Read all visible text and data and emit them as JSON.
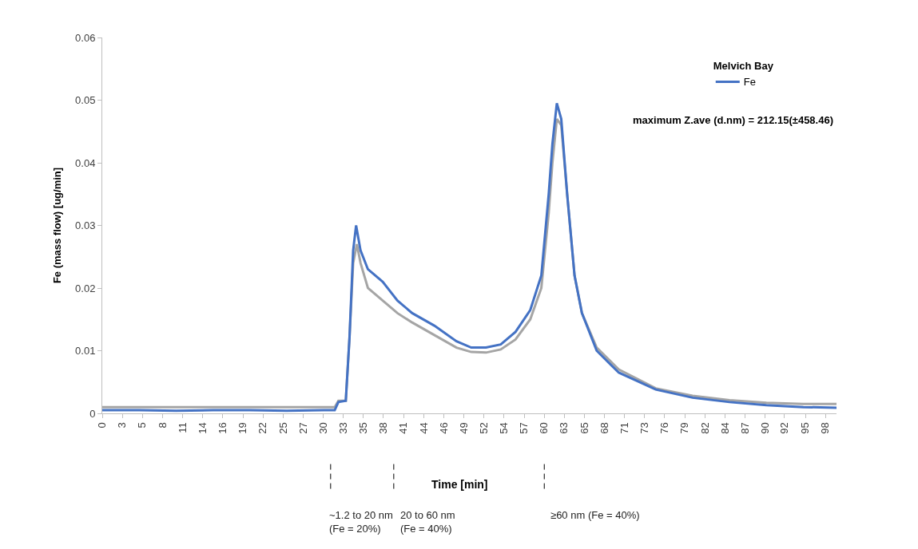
{
  "chart_data": {
    "type": "line",
    "xlabel": "Time [min]",
    "ylabel": "Fe (mass flow) [ug/min]",
    "legend_title": "Melvich Bay",
    "xlim": [
      0,
      99.5
    ],
    "xticks": [
      {
        "value": 0,
        "label": "0"
      },
      {
        "value": 2.72,
        "label": "3"
      },
      {
        "value": 5.44,
        "label": "5"
      },
      {
        "value": 8.17,
        "label": "8"
      },
      {
        "value": 10.89,
        "label": "11"
      },
      {
        "value": 13.61,
        "label": "14"
      },
      {
        "value": 16.33,
        "label": "16"
      },
      {
        "value": 19.06,
        "label": "19"
      },
      {
        "value": 21.78,
        "label": "22"
      },
      {
        "value": 24.5,
        "label": "25"
      },
      {
        "value": 27.22,
        "label": "27"
      },
      {
        "value": 29.94,
        "label": "30"
      },
      {
        "value": 32.67,
        "label": "33"
      },
      {
        "value": 35.39,
        "label": "35"
      },
      {
        "value": 38.11,
        "label": "38"
      },
      {
        "value": 40.83,
        "label": "41"
      },
      {
        "value": 43.56,
        "label": "44"
      },
      {
        "value": 46.28,
        "label": "46"
      },
      {
        "value": 49,
        "label": "49"
      },
      {
        "value": 51.72,
        "label": "52"
      },
      {
        "value": 54.44,
        "label": "54"
      },
      {
        "value": 57.17,
        "label": "57"
      },
      {
        "value": 59.89,
        "label": "60"
      },
      {
        "value": 62.61,
        "label": "63"
      },
      {
        "value": 65.33,
        "label": "65"
      },
      {
        "value": 68.06,
        "label": "68"
      },
      {
        "value": 70.78,
        "label": "71"
      },
      {
        "value": 73.5,
        "label": "73"
      },
      {
        "value": 76.22,
        "label": "76"
      },
      {
        "value": 78.94,
        "label": "79"
      },
      {
        "value": 81.67,
        "label": "82"
      },
      {
        "value": 84.39,
        "label": "84"
      },
      {
        "value": 87.11,
        "label": "87"
      },
      {
        "value": 89.83,
        "label": "90"
      },
      {
        "value": 92.45,
        "label": "92"
      },
      {
        "value": 95.28,
        "label": "95"
      },
      {
        "value": 98,
        "label": "98"
      }
    ],
    "ylim": [
      0,
      0.06
    ],
    "yticks": [
      0,
      0.01,
      0.02,
      0.03,
      0.04,
      0.05,
      0.06
    ],
    "grid": false,
    "legend": "top right",
    "marker": "none",
    "line_style": "solid",
    "series": [
      {
        "color": "#a5a5a5",
        "x": [
          0,
          5,
          10,
          15,
          20,
          25,
          30,
          31.5,
          32,
          33,
          33.5,
          34,
          34.5,
          35,
          36,
          38,
          40,
          42,
          45,
          48,
          50,
          52,
          54,
          56,
          58,
          59.5,
          60.5,
          61,
          61.6,
          62.2,
          63,
          64,
          65,
          67,
          70,
          75,
          80,
          85,
          90,
          95,
          99.5
        ],
        "values": [
          0.001,
          0.001,
          0.001,
          0.001,
          0.001,
          0.001,
          0.001,
          0.001,
          0.002,
          0.002,
          0.012,
          0.024,
          0.027,
          0.024,
          0.02,
          0.018,
          0.016,
          0.0145,
          0.0125,
          0.0105,
          0.0098,
          0.0097,
          0.0102,
          0.0118,
          0.015,
          0.02,
          0.032,
          0.04,
          0.047,
          0.046,
          0.035,
          0.022,
          0.016,
          0.0105,
          0.007,
          0.004,
          0.0028,
          0.0021,
          0.0017,
          0.0015,
          0.0015
        ]
      },
      {
        "name": "Fe",
        "color": "#4472c4",
        "x": [
          0,
          5,
          10,
          15,
          20,
          25,
          30,
          31.5,
          32,
          33,
          33.5,
          34,
          34.4,
          35,
          36,
          38,
          40,
          42,
          45,
          48,
          50,
          52,
          54,
          56,
          58,
          59.5,
          60.5,
          61,
          61.6,
          62.2,
          63,
          64,
          65,
          67,
          70,
          75,
          80,
          85,
          90,
          95,
          99.5
        ],
        "values": [
          0.0005,
          0.0005,
          0.0004,
          0.0005,
          0.0005,
          0.0004,
          0.0005,
          0.0005,
          0.0018,
          0.002,
          0.012,
          0.026,
          0.03,
          0.026,
          0.023,
          0.021,
          0.018,
          0.016,
          0.014,
          0.0115,
          0.0105,
          0.0105,
          0.011,
          0.013,
          0.0165,
          0.022,
          0.035,
          0.043,
          0.0495,
          0.047,
          0.035,
          0.022,
          0.016,
          0.01,
          0.0065,
          0.0038,
          0.0025,
          0.0018,
          0.0013,
          0.001,
          0.0009
        ]
      }
    ],
    "annotations": [
      "maximum Z.ave (d.nm) = 212.15(±458.46)",
      "~1.2 to 20 nm\n(Fe = 20%)",
      "20 to 60 nm\n(Fe = 40%)",
      "≥60 nm (Fe = 40%)"
    ]
  }
}
